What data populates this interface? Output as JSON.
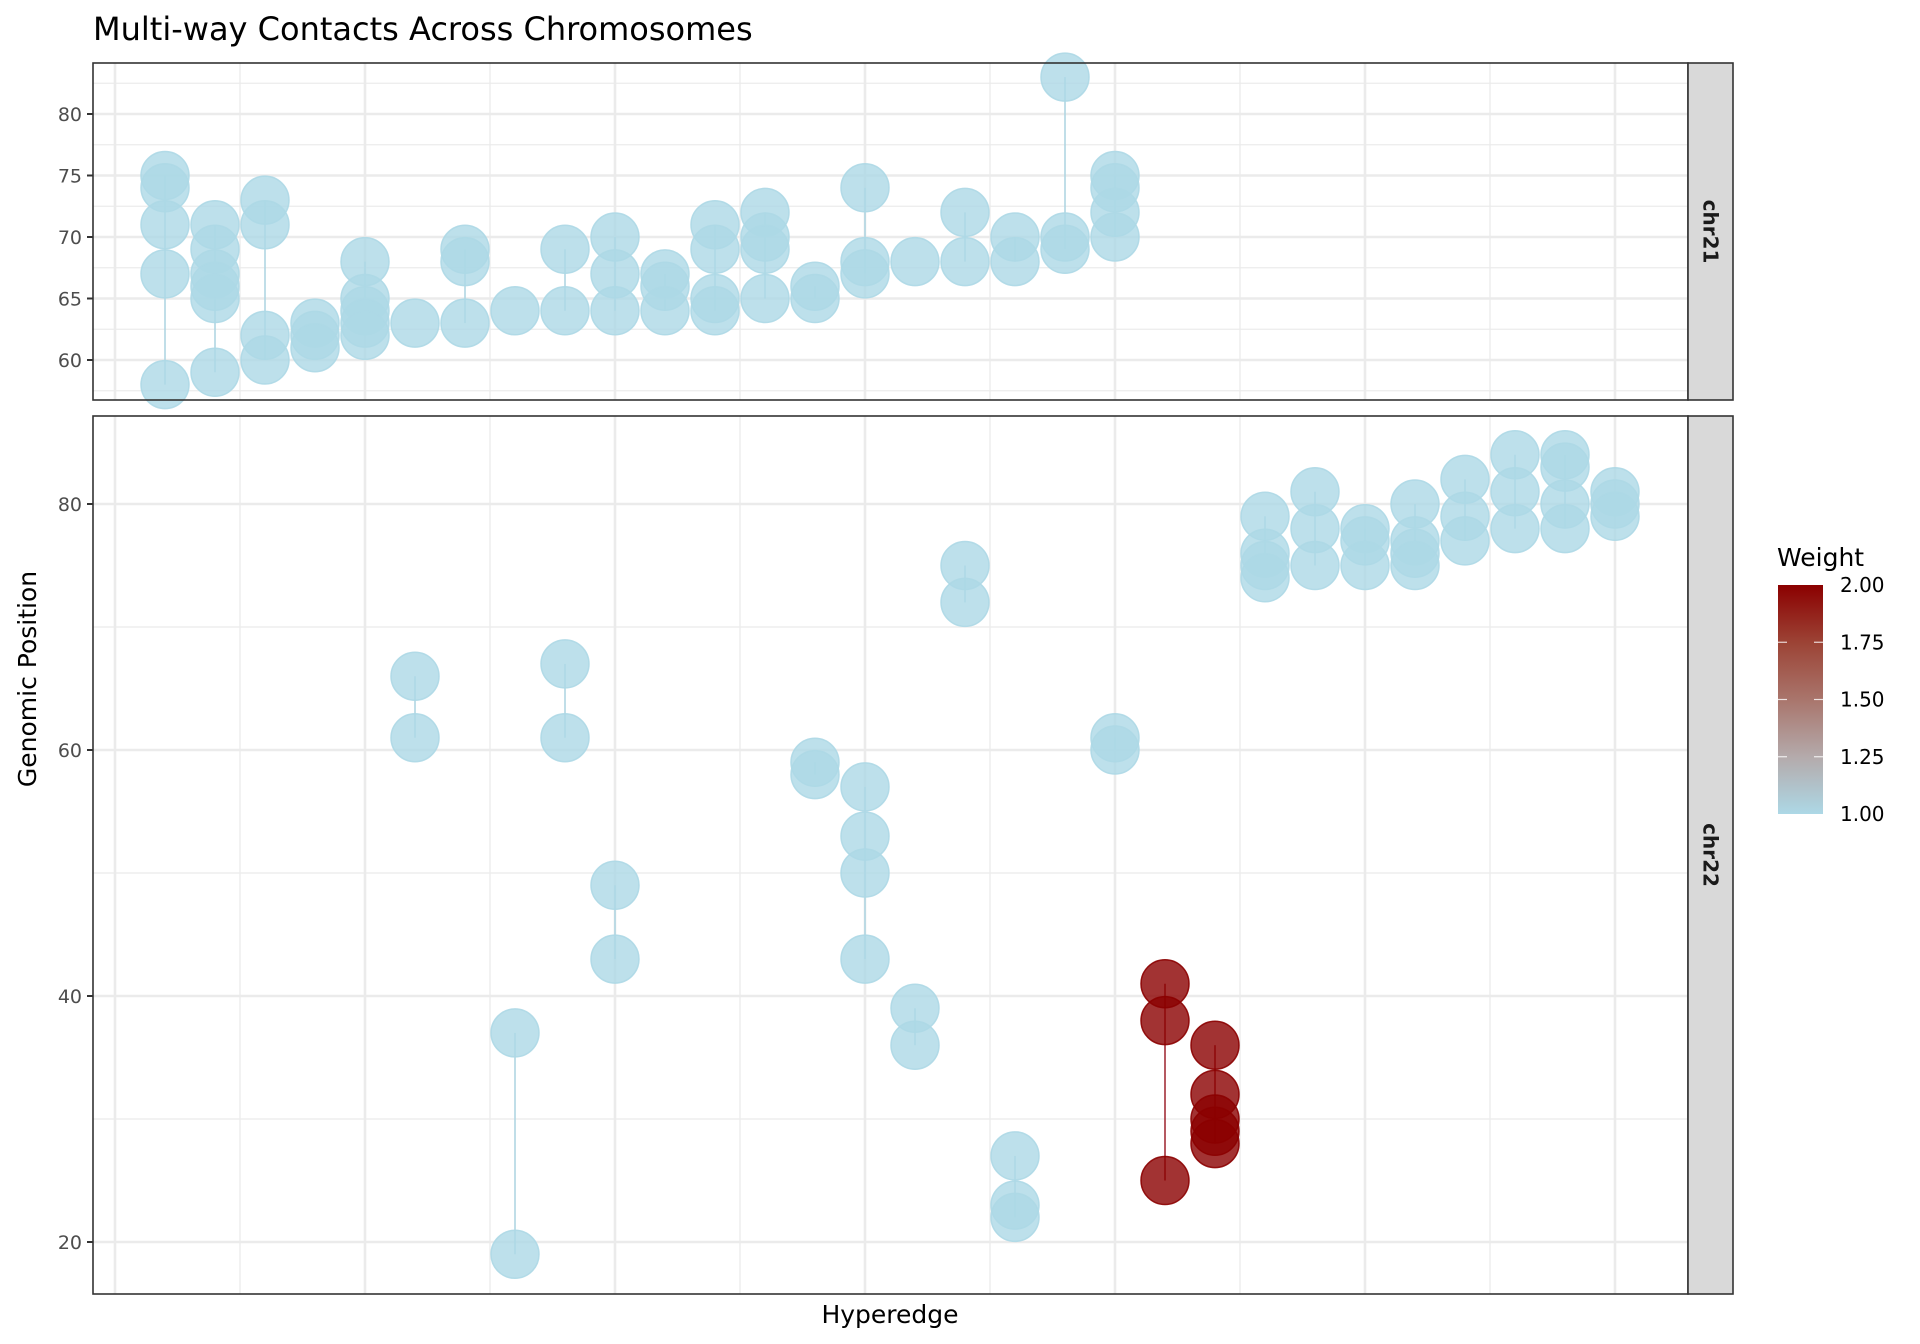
{
  "chart_data": {
    "type": "scatter",
    "title": "Multi-way Contacts Across Chromosomes",
    "xlabel": "Hyperedge",
    "ylabel": "Genomic Position",
    "x_tick_labels_shown": false,
    "grid": true,
    "facet_by": "chromosome",
    "legend": {
      "title": "Weight",
      "position": "right",
      "type": "colorbar",
      "range": [
        1.0,
        2.0
      ],
      "ticks": [
        "2.00",
        "1.75",
        "1.50",
        "1.25",
        "1.00"
      ],
      "low_color": "#add8e6",
      "high_color": "#8b0000"
    },
    "panels": [
      {
        "label": "chr21",
        "yticks": [
          60,
          65,
          70,
          75,
          80
        ],
        "ylim": [
          57,
          84
        ],
        "hyperedges": [
          {
            "x": 1,
            "weight": 1,
            "positions": [
              75,
              74,
              71,
              67,
              58
            ]
          },
          {
            "x": 2,
            "weight": 1,
            "positions": [
              71,
              69,
              67,
              66,
              65,
              59
            ]
          },
          {
            "x": 3,
            "weight": 1,
            "positions": [
              73,
              71,
              62,
              60
            ]
          },
          {
            "x": 4,
            "weight": 1,
            "positions": [
              63,
              62,
              61
            ]
          },
          {
            "x": 5,
            "weight": 1,
            "positions": [
              68,
              65,
              64,
              63,
              62
            ]
          },
          {
            "x": 6,
            "weight": 1,
            "positions": [
              63
            ]
          },
          {
            "x": 7,
            "weight": 1,
            "positions": [
              69,
              68,
              63
            ]
          },
          {
            "x": 8,
            "weight": 1,
            "positions": [
              64
            ]
          },
          {
            "x": 9,
            "weight": 1,
            "positions": [
              69,
              64
            ]
          },
          {
            "x": 10,
            "weight": 1,
            "positions": [
              70,
              67,
              64
            ]
          },
          {
            "x": 11,
            "weight": 1,
            "positions": [
              67,
              66,
              64
            ]
          },
          {
            "x": 12,
            "weight": 1,
            "positions": [
              71,
              69,
              65,
              64
            ]
          },
          {
            "x": 13,
            "weight": 1,
            "positions": [
              72,
              70,
              69,
              65
            ]
          },
          {
            "x": 14,
            "weight": 1,
            "positions": [
              66,
              65
            ]
          },
          {
            "x": 15,
            "weight": 1,
            "positions": [
              74,
              68,
              67
            ]
          },
          {
            "x": 16,
            "weight": 1,
            "positions": [
              68
            ]
          },
          {
            "x": 17,
            "weight": 1,
            "positions": [
              72,
              68
            ]
          },
          {
            "x": 18,
            "weight": 1,
            "positions": [
              70,
              68
            ]
          },
          {
            "x": 19,
            "weight": 1,
            "positions": [
              83,
              70,
              69
            ]
          },
          {
            "x": 20,
            "weight": 1,
            "positions": [
              75,
              74,
              72,
              70
            ]
          }
        ]
      },
      {
        "label": "chr22",
        "yticks": [
          20,
          40,
          60,
          80
        ],
        "ylim": [
          16,
          87
        ],
        "hyperedges": [
          {
            "x": 6,
            "weight": 1,
            "positions": [
              66,
              61
            ]
          },
          {
            "x": 8,
            "weight": 1,
            "positions": [
              37,
              19
            ]
          },
          {
            "x": 9,
            "weight": 1,
            "positions": [
              67,
              61
            ]
          },
          {
            "x": 10,
            "weight": 1,
            "positions": [
              49,
              43
            ]
          },
          {
            "x": 14,
            "weight": 1,
            "positions": [
              59,
              58
            ]
          },
          {
            "x": 15,
            "weight": 1,
            "positions": [
              57,
              53,
              50,
              43
            ]
          },
          {
            "x": 16,
            "weight": 1,
            "positions": [
              39,
              36
            ]
          },
          {
            "x": 17,
            "weight": 1,
            "positions": [
              75,
              72
            ]
          },
          {
            "x": 18,
            "weight": 1,
            "positions": [
              27,
              23,
              22
            ]
          },
          {
            "x": 20,
            "weight": 1,
            "positions": [
              61,
              60
            ]
          },
          {
            "x": 21,
            "weight": 2,
            "positions": [
              41,
              38,
              25
            ]
          },
          {
            "x": 22,
            "weight": 2,
            "positions": [
              36,
              32,
              30,
              29,
              28
            ]
          },
          {
            "x": 23,
            "weight": 1,
            "positions": [
              79,
              76,
              75,
              74
            ]
          },
          {
            "x": 24,
            "weight": 1,
            "positions": [
              81,
              78,
              75
            ]
          },
          {
            "x": 25,
            "weight": 1,
            "positions": [
              78,
              77,
              75
            ]
          },
          {
            "x": 26,
            "weight": 1,
            "positions": [
              80,
              77,
              76,
              75
            ]
          },
          {
            "x": 27,
            "weight": 1,
            "positions": [
              82,
              79,
              77
            ]
          },
          {
            "x": 28,
            "weight": 1,
            "positions": [
              84,
              81,
              78
            ]
          },
          {
            "x": 29,
            "weight": 1,
            "positions": [
              84,
              83,
              80,
              78
            ]
          },
          {
            "x": 30,
            "weight": 1,
            "positions": [
              81,
              80,
              79
            ]
          }
        ]
      }
    ]
  }
}
